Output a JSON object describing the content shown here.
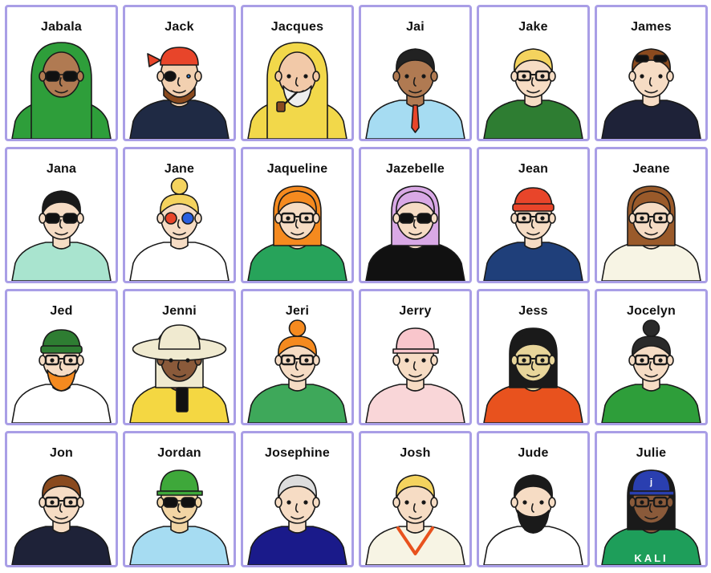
{
  "board": {
    "cards": [
      {
        "name": "Jabala",
        "shirt": "#2e9e3a",
        "skin": "#b07a52",
        "hair": "#2e9e3a",
        "hat": "hijab",
        "acc": "sunglasses"
      },
      {
        "name": "Jack",
        "shirt": "#1f2a44",
        "skin": "#f2d0b0",
        "hair": "#8a4a1e",
        "hat": "bandana",
        "acc": "eyepatch"
      },
      {
        "name": "Jacques",
        "shirt": "#f2d84a",
        "skin": "#f2c9a8",
        "hair": "#f2d84a",
        "hat": "hood",
        "acc": "pipe"
      },
      {
        "name": "Jai",
        "shirt": "#a6dcf2",
        "skin": "#b07a52",
        "hair": "#222222",
        "hat": "",
        "acc": "tie"
      },
      {
        "name": "Jake",
        "shirt": "#2e7d32",
        "skin": "#f6dcc4",
        "hair": "#f4d35e",
        "hat": "",
        "acc": "glasses"
      },
      {
        "name": "James",
        "shirt": "#1e2238",
        "skin": "#f6dcc4",
        "hair": "#8a4a1e",
        "hat": "",
        "acc": "sunglasses-up"
      },
      {
        "name": "Jana",
        "shirt": "#a9e4cf",
        "skin": "#f6dcc4",
        "hair": "#1a1a1a",
        "hat": "",
        "acc": "sunglasses"
      },
      {
        "name": "Jane",
        "shirt": "#ffffff",
        "skin": "#f6dcc4",
        "hair": "#f4d35e",
        "hat": "bun",
        "acc": "3d-glasses"
      },
      {
        "name": "Jaqueline",
        "shirt": "#27a35a",
        "skin": "#f6dcc4",
        "hair": "#f58a1f",
        "hat": "",
        "acc": "glasses"
      },
      {
        "name": "Jazebelle",
        "shirt": "#111111",
        "skin": "#f6dcc4",
        "hair": "#d9a9e6",
        "hat": "",
        "acc": "round-sunglasses"
      },
      {
        "name": "Jean",
        "shirt": "#1f3f7a",
        "skin": "#f6dcc4",
        "hair": "#e8452a",
        "hat": "beanie",
        "acc": "glasses"
      },
      {
        "name": "Jeane",
        "shirt": "#f7f4e4",
        "skin": "#f6dcc4",
        "hair": "#9a5a2a",
        "hat": "",
        "acc": "glasses"
      },
      {
        "name": "Jed",
        "shirt": "#ffffff",
        "skin": "#f6dcc4",
        "hair": "#f58a1f",
        "hat": "beanie-green",
        "acc": "glasses"
      },
      {
        "name": "Jenni",
        "shirt": "#f4d742",
        "skin": "#8a5a3a",
        "hair": "#f0ead0",
        "hat": "sunhat",
        "acc": "phone"
      },
      {
        "name": "Jeri",
        "shirt": "#3ea85a",
        "skin": "#f6dcc4",
        "hair": "#f58a1f",
        "hat": "bun",
        "acc": "glasses"
      },
      {
        "name": "Jerry",
        "shirt": "#f9d6d8",
        "skin": "#f6dcc4",
        "hair": "#f9c6cc",
        "hat": "cap",
        "acc": ""
      },
      {
        "name": "Jess",
        "shirt": "#e8521e",
        "skin": "#e8d59a",
        "hair": "#1a1a1a",
        "hat": "",
        "acc": "glasses"
      },
      {
        "name": "Jocelyn",
        "shirt": "#2e9e3a",
        "skin": "#f6dcc4",
        "hair": "#2a2a2a",
        "hat": "bun",
        "acc": "glasses"
      },
      {
        "name": "Jon",
        "shirt": "#1e2238",
        "skin": "#f6dcc4",
        "hair": "#8a4a1e",
        "hat": "",
        "acc": "glasses"
      },
      {
        "name": "Jordan",
        "shirt": "#a6dcf2",
        "skin": "#f2d5a4",
        "hair": "#f4d35e",
        "hat": "cap-green",
        "acc": "sunglasses"
      },
      {
        "name": "Josephine",
        "shirt": "#1a1a8a",
        "skin": "#f6dcc4",
        "hair": "#dddddd",
        "hat": "",
        "acc": ""
      },
      {
        "name": "Josh",
        "shirt": "#f7f4e4",
        "skin": "#f6dcc4",
        "hair": "#f4d35e",
        "hat": "",
        "acc": "vest"
      },
      {
        "name": "Jude",
        "shirt": "#ffffff",
        "skin": "#f6dcc4",
        "hair": "#1a1a1a",
        "hat": "",
        "acc": "beard"
      },
      {
        "name": "Julie",
        "shirt": "#1e9e5a",
        "skin": "#8a5a3a",
        "hair": "#1a1a1a",
        "hat": "cap-blue",
        "acc": "glasses"
      }
    ],
    "cap_letter": "j",
    "shirt_text": "KALI"
  },
  "colors": {
    "card_border": "#a99ee6",
    "outline": "#1a1a1a"
  }
}
